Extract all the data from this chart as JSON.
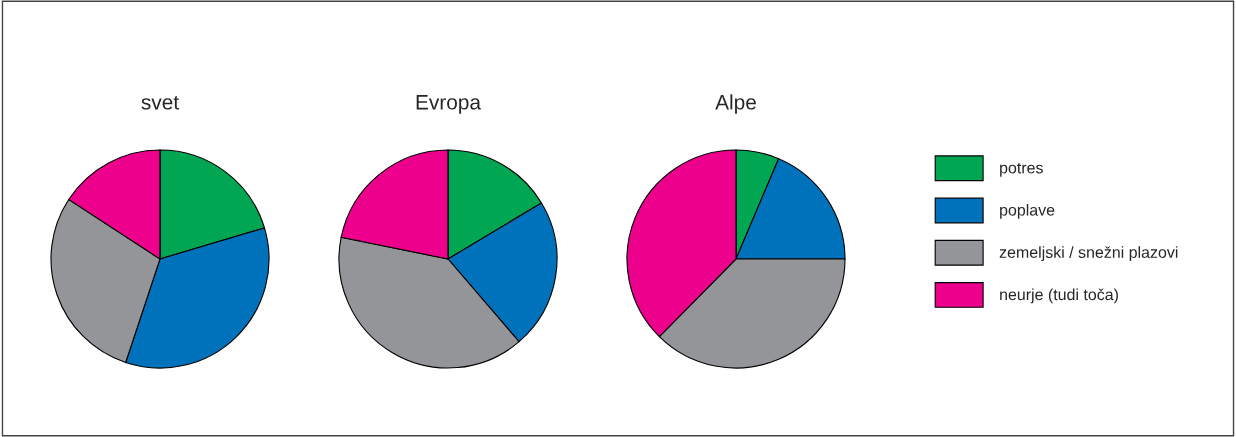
{
  "chart_data": [
    {
      "type": "pie",
      "title": "svet",
      "categories": [
        "potres",
        "poplave",
        "zemeljski / snežni plazovi",
        "neurje (tudi toča)"
      ],
      "values": [
        20.4,
        34.7,
        29.1,
        15.8
      ],
      "colors": [
        "#00a651",
        "#0072bc",
        "#939598",
        "#ec008c"
      ],
      "legend": "right"
    },
    {
      "type": "pie",
      "title": "Evropa",
      "values": [
        16.4,
        22.3,
        39.5,
        21.8
      ],
      "colors": [
        "#00a651",
        "#0072bc",
        "#939598",
        "#ec008c"
      ]
    },
    {
      "type": "pie",
      "title": "Alpe",
      "values": [
        6.4,
        18.6,
        37.4,
        37.6
      ],
      "colors": [
        "#00a651",
        "#0072bc",
        "#939598",
        "#ec008c"
      ]
    }
  ]
}
